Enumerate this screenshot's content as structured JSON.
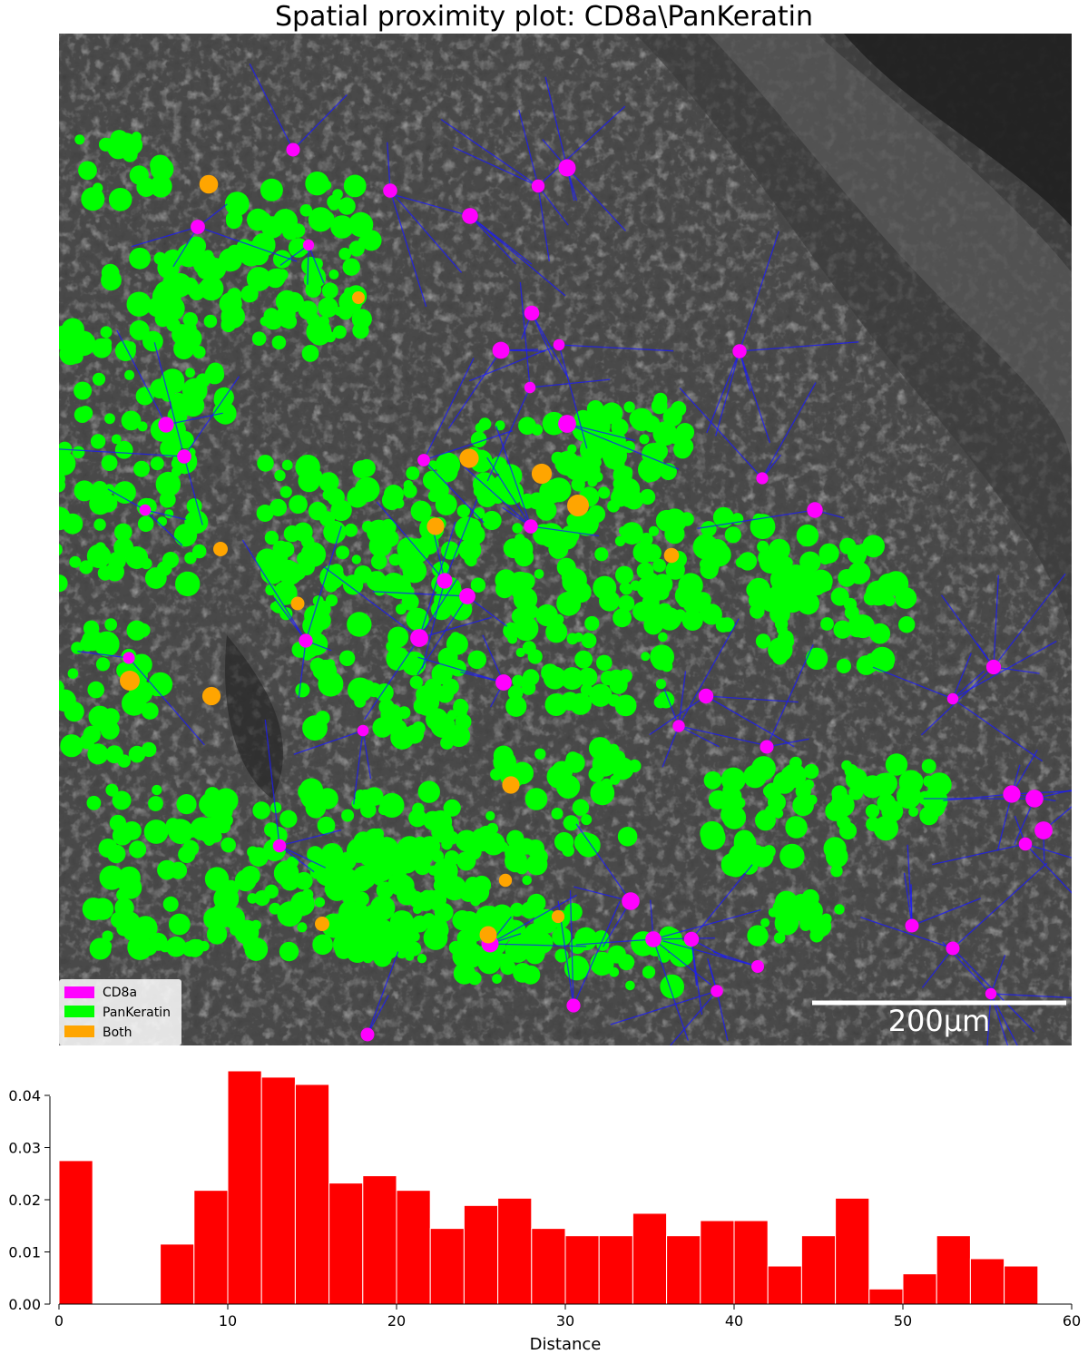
{
  "title": "Spatial proximity plot: CD8a\\PanKeratin",
  "scalebar": {
    "label": "200μm",
    "length_um": 200
  },
  "legend": [
    {
      "label": "CD8a",
      "color": "#ff00ff"
    },
    {
      "label": "PanKeratin",
      "color": "#00ff00"
    },
    {
      "label": "Both",
      "color": "#ffa500"
    }
  ],
  "colors": {
    "edge": "#1a1aff",
    "tissue": "#4a4a4a",
    "bar": "#ff0000"
  },
  "chart_data": {
    "type": "bar",
    "xlabel": "Distance",
    "ylabel": "",
    "xlim": [
      0,
      60
    ],
    "ylim": [
      0,
      0.0445
    ],
    "xticks": [
      "0",
      "10",
      "20",
      "30",
      "40",
      "50",
      "60"
    ],
    "yticks": [
      "0.00",
      "0.01",
      "0.02",
      "0.03",
      "0.04"
    ],
    "bin_width": 2,
    "bins": [
      {
        "x0": 0,
        "value": 0.0275
      },
      {
        "x0": 2,
        "value": 0
      },
      {
        "x0": 4,
        "value": 0
      },
      {
        "x0": 6,
        "value": 0.0115
      },
      {
        "x0": 8,
        "value": 0.0218
      },
      {
        "x0": 10,
        "value": 0.0447
      },
      {
        "x0": 12,
        "value": 0.0435
      },
      {
        "x0": 14,
        "value": 0.0421
      },
      {
        "x0": 16,
        "value": 0.0232
      },
      {
        "x0": 18,
        "value": 0.0246
      },
      {
        "x0": 20,
        "value": 0.0218
      },
      {
        "x0": 22,
        "value": 0.0145
      },
      {
        "x0": 24,
        "value": 0.0189
      },
      {
        "x0": 26,
        "value": 0.0203
      },
      {
        "x0": 28,
        "value": 0.0145
      },
      {
        "x0": 30,
        "value": 0.0131
      },
      {
        "x0": 32,
        "value": 0.0131
      },
      {
        "x0": 34,
        "value": 0.0174
      },
      {
        "x0": 36,
        "value": 0.0131
      },
      {
        "x0": 38,
        "value": 0.016
      },
      {
        "x0": 40,
        "value": 0.016
      },
      {
        "x0": 42,
        "value": 0.0073
      },
      {
        "x0": 44,
        "value": 0.0131
      },
      {
        "x0": 46,
        "value": 0.0203
      },
      {
        "x0": 48,
        "value": 0.0029
      },
      {
        "x0": 50,
        "value": 0.0058
      },
      {
        "x0": 52,
        "value": 0.0131
      },
      {
        "x0": 54,
        "value": 0.0087
      },
      {
        "x0": 56,
        "value": 0.0073
      }
    ]
  }
}
